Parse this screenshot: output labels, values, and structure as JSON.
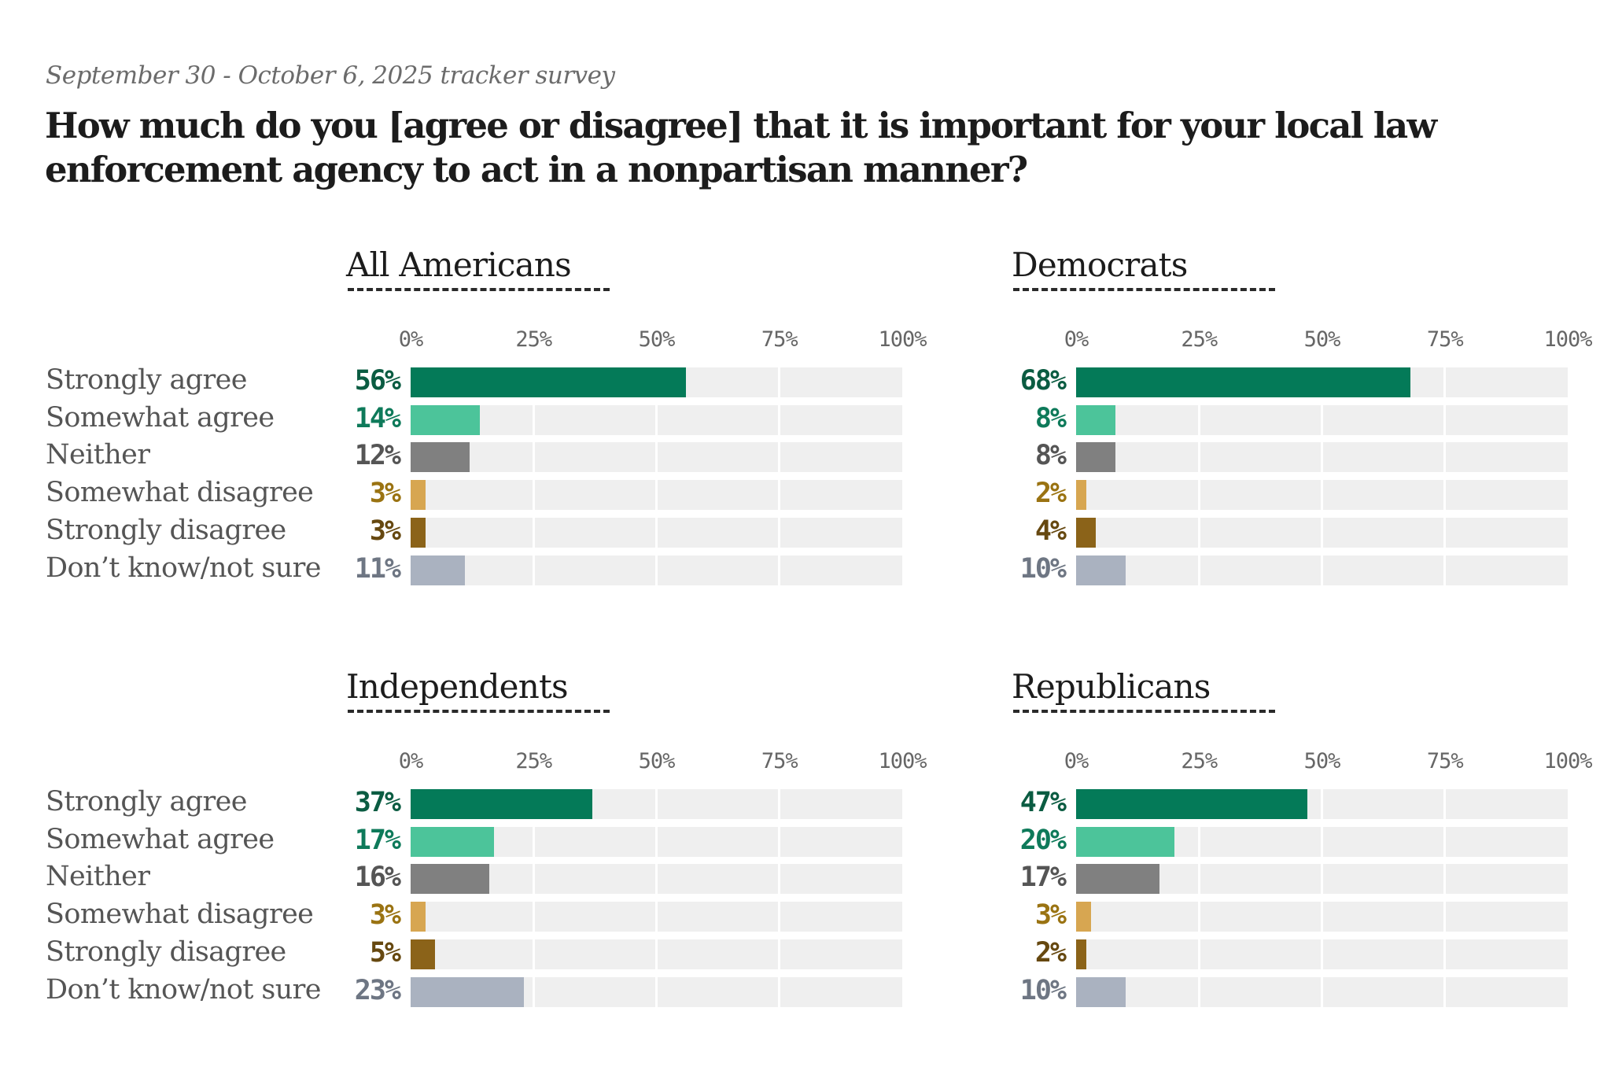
{
  "header": {
    "subtitle": "September 30 - October 6, 2025 tracker survey",
    "title": "How much do you [agree or disagree] that it is important for your local law enforcement agency to act in a nonpartisan manner?"
  },
  "colors": {
    "track": "#efefef",
    "categories": [
      {
        "bar": "#047a58",
        "text": "#0b5c42"
      },
      {
        "bar": "#4cc49a",
        "text": "#0e7a5a"
      },
      {
        "bar": "#808080",
        "text": "#555555"
      },
      {
        "bar": "#d7a651",
        "text": "#9a7312"
      },
      {
        "bar": "#8b6319",
        "text": "#664810"
      },
      {
        "bar": "#aab2c0",
        "text": "#6e7683"
      }
    ]
  },
  "chart_data": [
    {
      "type": "bar",
      "orientation": "horizontal",
      "title": "All Americans",
      "categories": [
        "Strongly agree",
        "Somewhat agree",
        "Neither",
        "Somewhat disagree",
        "Strongly disagree",
        "Don’t know/not sure"
      ],
      "values": [
        56,
        14,
        12,
        3,
        3,
        11
      ],
      "value_labels": [
        "56%",
        "14%",
        "12%",
        "3%",
        "3%",
        "11%"
      ],
      "x_ticks": [
        "0%",
        "25%",
        "50%",
        "75%",
        "100%"
      ],
      "xlim": [
        0,
        100
      ],
      "xlabel": "",
      "ylabel": "",
      "grid": true
    },
    {
      "type": "bar",
      "orientation": "horizontal",
      "title": "Democrats",
      "categories": [
        "Strongly agree",
        "Somewhat agree",
        "Neither",
        "Somewhat disagree",
        "Strongly disagree",
        "Don’t know/not sure"
      ],
      "values": [
        68,
        8,
        8,
        2,
        4,
        10
      ],
      "value_labels": [
        "68%",
        "8%",
        "8%",
        "2%",
        "4%",
        "10%"
      ],
      "x_ticks": [
        "0%",
        "25%",
        "50%",
        "75%",
        "100%"
      ],
      "xlim": [
        0,
        100
      ],
      "xlabel": "",
      "ylabel": "",
      "grid": true
    },
    {
      "type": "bar",
      "orientation": "horizontal",
      "title": "Independents",
      "categories": [
        "Strongly agree",
        "Somewhat agree",
        "Neither",
        "Somewhat disagree",
        "Strongly disagree",
        "Don’t know/not sure"
      ],
      "values": [
        37,
        17,
        16,
        3,
        5,
        23
      ],
      "value_labels": [
        "37%",
        "17%",
        "16%",
        "3%",
        "5%",
        "23%"
      ],
      "x_ticks": [
        "0%",
        "25%",
        "50%",
        "75%",
        "100%"
      ],
      "xlim": [
        0,
        100
      ],
      "xlabel": "",
      "ylabel": "",
      "grid": true
    },
    {
      "type": "bar",
      "orientation": "horizontal",
      "title": "Republicans",
      "categories": [
        "Strongly agree",
        "Somewhat agree",
        "Neither",
        "Somewhat disagree",
        "Strongly disagree",
        "Don’t know/not sure"
      ],
      "values": [
        47,
        20,
        17,
        3,
        2,
        10
      ],
      "value_labels": [
        "47%",
        "20%",
        "17%",
        "3%",
        "2%",
        "10%"
      ],
      "x_ticks": [
        "0%",
        "25%",
        "50%",
        "75%",
        "100%"
      ],
      "xlim": [
        0,
        100
      ],
      "xlabel": "",
      "ylabel": "",
      "grid": true
    }
  ]
}
